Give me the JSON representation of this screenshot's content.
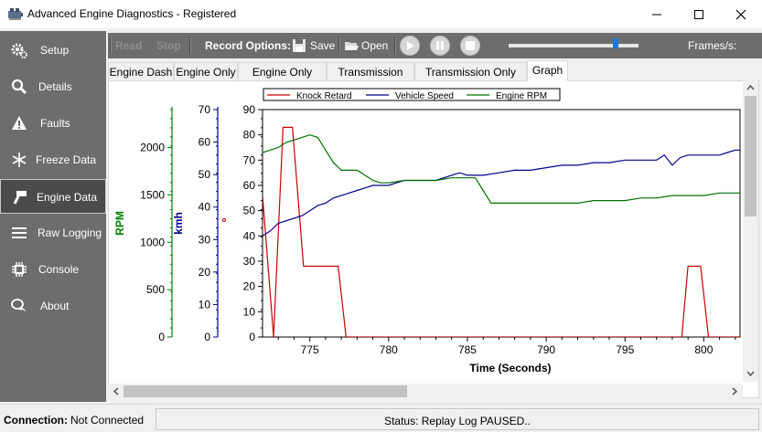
{
  "window": {
    "title": "Advanced Engine Diagnostics - Registered",
    "controls": [
      "minimize",
      "maximize",
      "close"
    ]
  },
  "sidebar": {
    "items": [
      {
        "label": "Setup",
        "icon": "gear-icon"
      },
      {
        "label": "Details",
        "icon": "magnifier-icon"
      },
      {
        "label": "Faults",
        "icon": "warning-icon"
      },
      {
        "label": "Freeze Data",
        "icon": "snowflake-icon"
      },
      {
        "label": "Engine Data",
        "icon": "piston-icon",
        "active": true
      },
      {
        "label": "Raw Logging",
        "icon": "menu-icon"
      },
      {
        "label": "Console",
        "icon": "chip-icon"
      },
      {
        "label": "About",
        "icon": "chat-icon"
      }
    ]
  },
  "toolbar": {
    "read_label": "Read",
    "stop_label": "Stop",
    "record_options_label": "Record Options:",
    "save_label": "Save",
    "open_label": "Open",
    "frames_label": "Frames/s:",
    "slider_level": 0.84
  },
  "tabs": [
    {
      "label": "Engine Dash"
    },
    {
      "label": "Engine Only"
    },
    {
      "label": "Engine Only Flags"
    },
    {
      "label": "Transmission Only"
    },
    {
      "label": "Transmission Only Flags"
    },
    {
      "label": "Graph",
      "active": true
    }
  ],
  "chart_data": {
    "type": "line",
    "xlabel": "Time (Seconds)",
    "xlim": [
      772,
      802.3
    ],
    "x_ticks": [
      775,
      780,
      785,
      790,
      795,
      800
    ],
    "legend": [
      "Knock Retard",
      "Vehicle Speed",
      "Engine RPM"
    ],
    "colors": {
      "knock": "#cc0000",
      "speed": "#00008b",
      "rpm": "#007000",
      "axis_rpm": "#008000",
      "axis_kmh": "#00008b"
    },
    "axes": [
      {
        "label": "RPM",
        "min": 0,
        "max": 2400,
        "ticks": [
          0,
          500,
          1000,
          1500,
          2000
        ]
      },
      {
        "label": "kmh",
        "min": 0,
        "max": 70,
        "ticks": [
          0,
          10,
          20,
          30,
          40,
          50,
          60,
          70
        ]
      },
      {
        "label": "",
        "min": 0,
        "max": 90,
        "ticks": [
          0,
          10,
          20,
          30,
          40,
          50,
          60,
          70,
          80,
          90
        ]
      }
    ],
    "series": [
      {
        "name": "Knock Retard",
        "axis": 2,
        "x": [
          772,
          772.7,
          773.3,
          773.9,
          774.6,
          776.8,
          777.3,
          798.6,
          799.0,
          799.8,
          800.3,
          802.3
        ],
        "y": [
          56,
          0,
          83,
          83,
          28,
          28,
          0,
          0,
          28,
          28,
          0,
          0
        ]
      },
      {
        "name": "Vehicle Speed",
        "axis": 2,
        "x": [
          772,
          772.5,
          773,
          773.5,
          774,
          774.5,
          775,
          775.5,
          776,
          776.5,
          777,
          777.5,
          778,
          778.5,
          779,
          779.5,
          780,
          780.5,
          781,
          782,
          783,
          784,
          784.5,
          785,
          785.5,
          786,
          787,
          788,
          789,
          790,
          791,
          792,
          793,
          794,
          795,
          796,
          797,
          797.5,
          798,
          798.5,
          799,
          800,
          801,
          801.5,
          802,
          802.3
        ],
        "y": [
          40,
          42,
          45,
          46,
          47,
          48,
          50,
          52,
          53,
          55,
          56,
          57,
          58,
          59,
          60,
          60,
          60,
          61,
          62,
          62,
          62,
          64,
          65,
          64,
          64,
          64,
          65,
          66,
          66,
          67,
          68,
          68,
          69,
          69,
          70,
          70,
          70,
          72,
          68,
          71,
          72,
          72,
          72,
          73,
          74,
          74
        ]
      },
      {
        "name": "Engine RPM",
        "axis": 2,
        "x": [
          772,
          772.5,
          773,
          773.5,
          774,
          774.5,
          775,
          775.5,
          776,
          776.5,
          777,
          778,
          778.5,
          779,
          779.5,
          780,
          781,
          782,
          783,
          784,
          785,
          785.5,
          786,
          786.5,
          787,
          788,
          789,
          790,
          791,
          792,
          793,
          794,
          795,
          796,
          797,
          798,
          799,
          800,
          801,
          802,
          802.3
        ],
        "y": [
          73,
          74,
          75,
          77,
          78,
          79,
          80,
          79,
          74,
          69,
          66,
          66,
          64,
          62,
          61,
          61,
          62,
          62,
          62,
          63,
          63,
          63,
          58,
          53,
          53,
          53,
          53,
          53,
          53,
          53,
          54,
          54,
          54,
          55,
          55,
          56,
          56,
          56,
          57,
          57,
          57
        ]
      }
    ]
  },
  "status": {
    "connection_label": "Connection:",
    "connection_value": "Not Connected",
    "status_text": "Status: Replay Log PAUSED.."
  }
}
